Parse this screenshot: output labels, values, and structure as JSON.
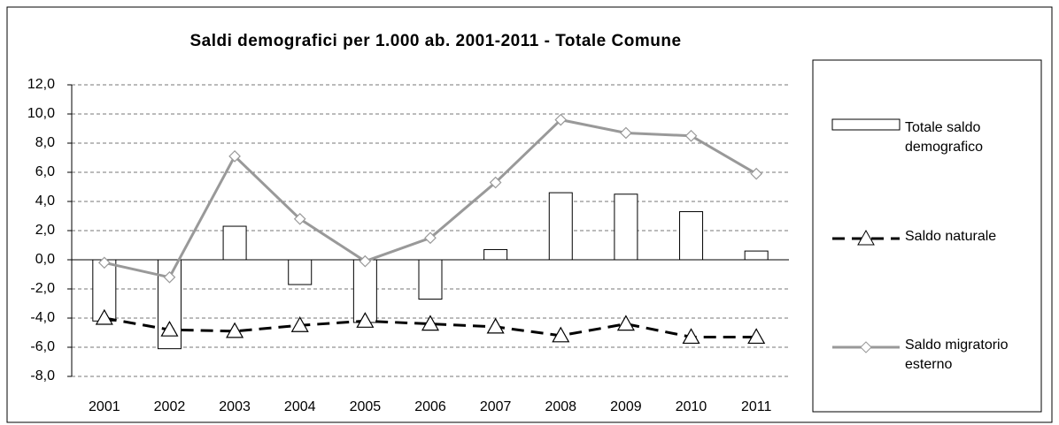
{
  "chart_data": {
    "type": "bar_line",
    "title": "Saldi demografici per 1.000 ab. 2001-2011 - Totale Comune",
    "categories": [
      "2001",
      "2002",
      "2003",
      "2004",
      "2005",
      "2006",
      "2007",
      "2008",
      "2009",
      "2010",
      "2011"
    ],
    "series": [
      {
        "name": "Totale saldo demografico",
        "type": "bar",
        "color": "#ffffff",
        "values": [
          -4.2,
          -6.1,
          2.3,
          -1.7,
          -4.3,
          -2.7,
          0.7,
          4.6,
          4.5,
          3.3,
          0.6
        ]
      },
      {
        "name": "Saldo naturale",
        "type": "line",
        "color": "#000000",
        "values": [
          -4.0,
          -4.8,
          -4.9,
          -4.5,
          -4.2,
          -4.4,
          -4.6,
          -5.2,
          -4.4,
          -5.3,
          -5.3
        ]
      },
      {
        "name": "Saldo migratorio esterno",
        "type": "line",
        "color": "#999999",
        "values": [
          -0.2,
          -1.2,
          7.1,
          2.8,
          -0.1,
          1.5,
          5.3,
          9.6,
          8.7,
          8.5,
          5.9
        ]
      }
    ],
    "ylim": [
      -8,
      12
    ],
    "yticks": [
      {
        "value": -8,
        "label": "-8,0"
      },
      {
        "value": -6,
        "label": "-6,0"
      },
      {
        "value": -4,
        "label": "-4,0"
      },
      {
        "value": -2,
        "label": "-2,0"
      },
      {
        "value": 0,
        "label": "0,0"
      },
      {
        "value": 2,
        "label": "2,0"
      },
      {
        "value": 4,
        "label": "4,0"
      },
      {
        "value": 6,
        "label": "6,0"
      },
      {
        "value": 8,
        "label": "8,0"
      },
      {
        "value": 10,
        "label": "10,0"
      },
      {
        "value": 12,
        "label": "12,0"
      }
    ],
    "grid": true
  }
}
